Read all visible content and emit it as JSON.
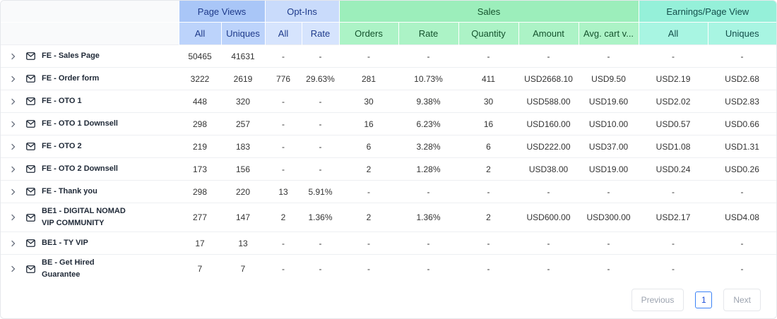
{
  "headers": {
    "groups": [
      "Page Views",
      "Opt-Ins",
      "Sales",
      "Earnings/Page View"
    ],
    "columns": [
      "All",
      "Uniques",
      "All",
      "Rate",
      "Orders",
      "Rate",
      "Quantity",
      "Amount",
      "Avg. cart v...",
      "All",
      "Uniques"
    ]
  },
  "colors": {
    "page_views": "#a9c6f7",
    "opt_ins": "#c9dbfb",
    "sales": "#9ceebb",
    "earnings": "#95f0d9"
  },
  "rows": [
    {
      "name": "FE - Sales Page",
      "cells": [
        "50465",
        "41631",
        "-",
        "-",
        "-",
        "-",
        "-",
        "-",
        "-",
        "-",
        "-"
      ]
    },
    {
      "name": "FE - Order form",
      "cells": [
        "3222",
        "2619",
        "776",
        "29.63%",
        "281",
        "10.73%",
        "411",
        "USD2668.10",
        "USD9.50",
        "USD2.19",
        "USD2.68"
      ]
    },
    {
      "name": "FE - OTO 1",
      "cells": [
        "448",
        "320",
        "-",
        "-",
        "30",
        "9.38%",
        "30",
        "USD588.00",
        "USD19.60",
        "USD2.02",
        "USD2.83"
      ]
    },
    {
      "name": "FE - OTO 1 Downsell",
      "cells": [
        "298",
        "257",
        "-",
        "-",
        "16",
        "6.23%",
        "16",
        "USD160.00",
        "USD10.00",
        "USD0.57",
        "USD0.66"
      ]
    },
    {
      "name": "FE - OTO 2",
      "cells": [
        "219",
        "183",
        "-",
        "-",
        "6",
        "3.28%",
        "6",
        "USD222.00",
        "USD37.00",
        "USD1.08",
        "USD1.31"
      ]
    },
    {
      "name": "FE - OTO 2 Downsell",
      "cells": [
        "173",
        "156",
        "-",
        "-",
        "2",
        "1.28%",
        "2",
        "USD38.00",
        "USD19.00",
        "USD0.24",
        "USD0.26"
      ]
    },
    {
      "name": "FE - Thank you",
      "cells": [
        "298",
        "220",
        "13",
        "5.91%",
        "-",
        "-",
        "-",
        "-",
        "-",
        "-",
        "-"
      ]
    },
    {
      "name": "BE1 - DIGITAL NOMAD\nVIP COMMUNITY",
      "cells": [
        "277",
        "147",
        "2",
        "1.36%",
        "2",
        "1.36%",
        "2",
        "USD600.00",
        "USD300.00",
        "USD2.17",
        "USD4.08"
      ]
    },
    {
      "name": "BE1 - TY VIP",
      "cells": [
        "17",
        "13",
        "-",
        "-",
        "-",
        "-",
        "-",
        "-",
        "-",
        "-",
        "-"
      ]
    },
    {
      "name": "BE - Get Hired\nGuarantee",
      "cells": [
        "7",
        "7",
        "-",
        "-",
        "-",
        "-",
        "-",
        "-",
        "-",
        "-",
        "-"
      ]
    }
  ],
  "pagination": {
    "previous": "Previous",
    "page": "1",
    "next": "Next"
  },
  "icons": {
    "expand": "chevron-right-icon",
    "row": "mail-icon"
  }
}
